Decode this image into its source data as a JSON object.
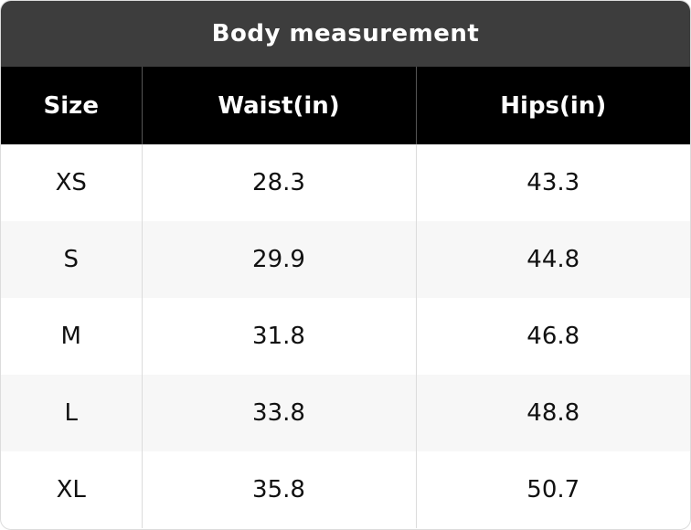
{
  "table": {
    "title": "Body measurement",
    "header": [
      "Size",
      "Waist(in)",
      "Hips(in)"
    ],
    "rows": [
      [
        "XS",
        "28.3",
        "43.3"
      ],
      [
        "S",
        "29.9",
        "44.8"
      ],
      [
        "M",
        "31.8",
        "46.8"
      ],
      [
        "L",
        "33.8",
        "48.8"
      ],
      [
        "XL",
        "35.8",
        "50.7"
      ]
    ]
  }
}
